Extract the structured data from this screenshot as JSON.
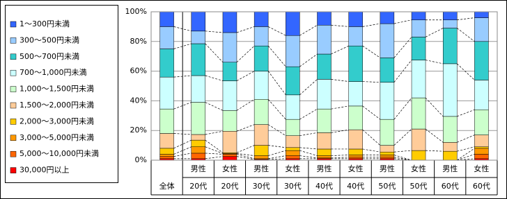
{
  "chart_data": {
    "type": "stacked_bar_100",
    "categories": [
      [
        "全体"
      ],
      [
        "男性",
        "20代"
      ],
      [
        "女性",
        "20代"
      ],
      [
        "男性",
        "30代"
      ],
      [
        "女性",
        "30代"
      ],
      [
        "男性",
        "40代"
      ],
      [
        "女性",
        "40代"
      ],
      [
        "男性",
        "50代"
      ],
      [
        "女性",
        "50代"
      ],
      [
        "男性",
        "60代"
      ],
      [
        "女性",
        "60代"
      ]
    ],
    "series": [
      {
        "name": "1～300円未満",
        "color": "#3366ff",
        "values": [
          10,
          13,
          14,
          10,
          16,
          9,
          10,
          8,
          5.5,
          5.5,
          4
        ]
      },
      {
        "name": "300～500円未満",
        "color": "#99ccff",
        "values": [
          15,
          8.5,
          20,
          13,
          21,
          19.5,
          13,
          23,
          11.5,
          5.5,
          16
        ]
      },
      {
        "name": "500～700円未満",
        "color": "#33cccc",
        "values": [
          19,
          21.5,
          12.5,
          17,
          19,
          17,
          24,
          16.5,
          15.5,
          24,
          26
        ]
      },
      {
        "name": "700～1,000円未満",
        "color": "#ccffff",
        "values": [
          21.5,
          18,
          20,
          19,
          16.5,
          20,
          16.5,
          25,
          25.5,
          35.5,
          20
        ]
      },
      {
        "name": "1,000～1,500円未満",
        "color": "#ccffcc",
        "values": [
          16.5,
          21.7,
          14,
          17,
          11,
          16,
          16,
          17.5,
          21,
          17.5,
          17
        ]
      },
      {
        "name": "1,500～2,000円未満",
        "color": "#ffcc99",
        "values": [
          10,
          3.8,
          14.5,
          14,
          8,
          11,
          13,
          4.5,
          14.5,
          6,
          8
        ]
      },
      {
        "name": "2,000～3,000円未満",
        "color": "#ffcc00",
        "values": [
          4,
          4.5,
          0.5,
          7,
          2,
          4.5,
          4,
          2,
          6.5,
          6,
          1
        ]
      },
      {
        "name": "3,000～5,000円未満",
        "color": "#ff9900",
        "values": [
          1.5,
          4.3,
          0.5,
          2,
          3.5,
          1.5,
          1.5,
          1.5,
          0,
          0,
          4
        ]
      },
      {
        "name": "5,000～10,000円未満",
        "color": "#ff6600",
        "values": [
          1.5,
          3.7,
          1.5,
          0.5,
          2,
          0.5,
          1,
          1,
          0,
          0,
          3
        ]
      },
      {
        "name": "30,000円以上",
        "color": "#ff0000",
        "values": [
          1,
          1,
          2.5,
          0.5,
          1,
          1,
          1,
          1,
          0,
          0,
          1
        ]
      }
    ],
    "ylim": [
      0,
      100
    ],
    "yticks": [
      {
        "value": 0,
        "label": "0%"
      },
      {
        "value": 20,
        "label": "20%"
      },
      {
        "value": 40,
        "label": "40%"
      },
      {
        "value": 60,
        "label": "60%"
      },
      {
        "value": 80,
        "label": "80%"
      },
      {
        "value": 100,
        "label": "100%"
      }
    ],
    "grid": true
  }
}
